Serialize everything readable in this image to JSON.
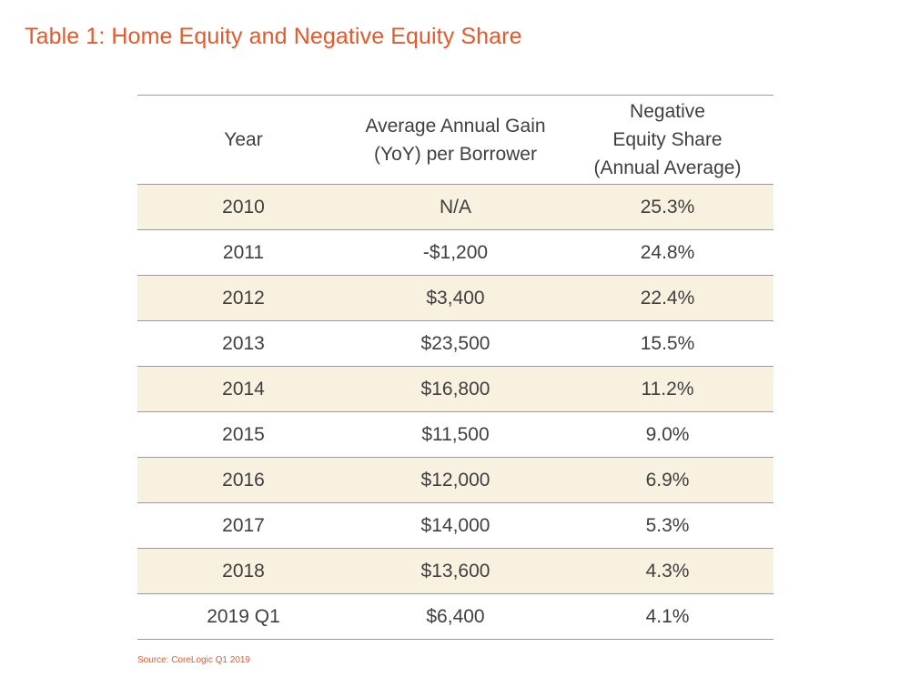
{
  "title": "Table 1: Home Equity and Negative Equity Share",
  "table": {
    "headers": [
      {
        "lines": [
          "Year"
        ]
      },
      {
        "lines": [
          "Average Annual Gain",
          "(YoY) per Borrower"
        ]
      },
      {
        "lines": [
          "Negative",
          "Equity Share",
          "(Annual Average)"
        ]
      }
    ],
    "rows": [
      [
        "2010",
        "N/A",
        "25.3%"
      ],
      [
        "2011",
        "-$1,200",
        "24.8%"
      ],
      [
        "2012",
        "$3,400",
        "22.4%"
      ],
      [
        "2013",
        "$23,500",
        "15.5%"
      ],
      [
        "2014",
        "$16,800",
        "11.2%"
      ],
      [
        "2015",
        "$11,500",
        "9.0%"
      ],
      [
        "2016",
        "$12,000",
        "6.9%"
      ],
      [
        "2017",
        "$14,000",
        "5.3%"
      ],
      [
        "2018",
        "$13,600",
        "4.3%"
      ],
      [
        "2019 Q1",
        "$6,400",
        "4.1%"
      ]
    ]
  },
  "source": "Source: CoreLogic Q1 2019",
  "colors": {
    "accent": "#e8582a",
    "row_shade": "#f9f1df",
    "rule": "#9a9a9a",
    "text": "#3f3f3f"
  }
}
